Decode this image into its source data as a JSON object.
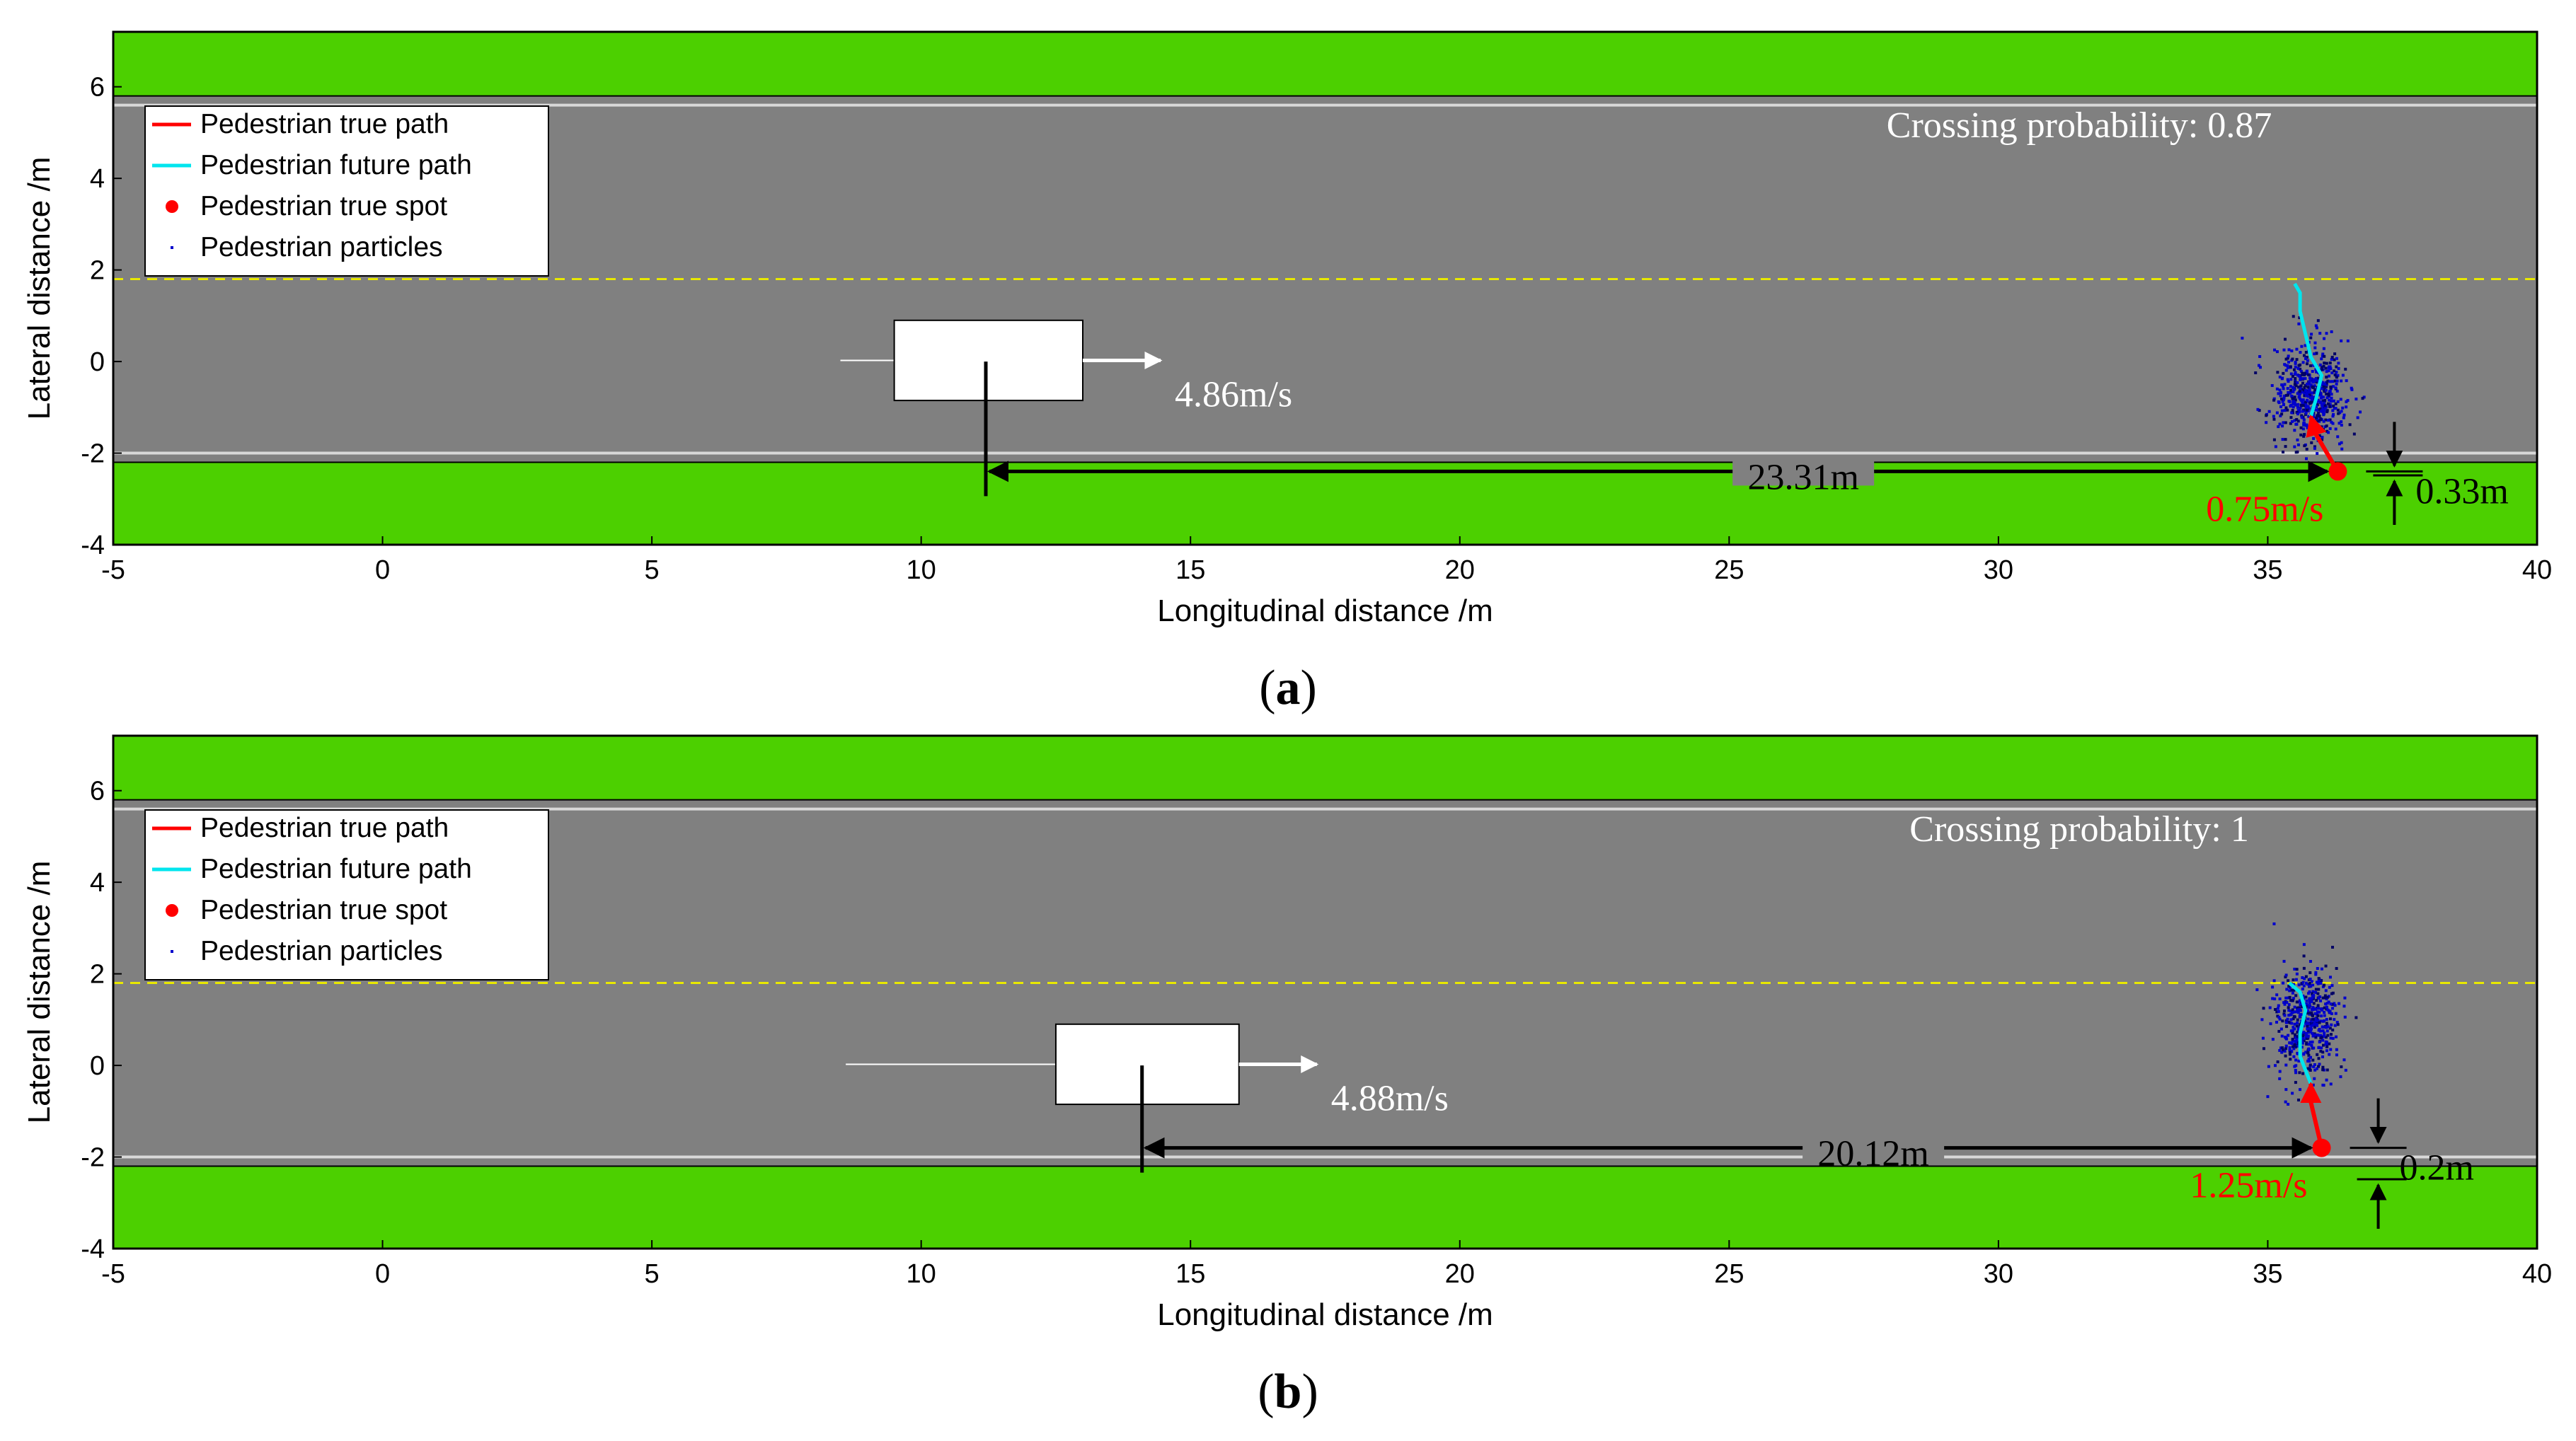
{
  "figure": {
    "panel_labels": [
      "a",
      "b"
    ]
  },
  "colors": {
    "road": "#808080",
    "grass": "#4cd000",
    "lane_line": "#e8e800",
    "edge_line": "#d8d8d8",
    "true_path": "#ff0000",
    "future_path": "#00e5ee",
    "particles": "#0000cc",
    "vehicle": "#ffffff",
    "dimension": "#000000"
  },
  "chart_data": [
    {
      "type": "scatter",
      "panel": "a",
      "xlabel": "Longitudinal distance /m",
      "ylabel": "Lateral distance /m",
      "xlim": [
        -5,
        40
      ],
      "ylim": [
        -4,
        7.2
      ],
      "xticks": [
        -5,
        0,
        5,
        10,
        15,
        20,
        25,
        30,
        35,
        40
      ],
      "yticks": [
        -4,
        -2,
        0,
        2,
        4,
        6
      ],
      "legend": {
        "placement": "top-left",
        "entries": [
          "Pedestrian true path",
          "Pedestrian future path",
          "Pedestrian true spot",
          "Pedestrian particles"
        ]
      },
      "grass_bands": [
        [
          -4,
          -2.2
        ],
        [
          5.8,
          7.2
        ]
      ],
      "edge_lines_y": [
        -2.0,
        5.6
      ],
      "center_line_y": 1.8,
      "crossing_probability_text": "Crossing probability: 0.87",
      "vehicle": {
        "x_min": 9.5,
        "x_max": 13.0,
        "y_min": -0.85,
        "y_max": 0.9,
        "front_x": 11.2,
        "trail_start_x": 8.5,
        "speed_text": "4.86m/s"
      },
      "pedestrian": {
        "true_spot": [
          36.3,
          -2.4
        ],
        "true_path": [
          [
            36.3,
            -2.4
          ],
          [
            36.1,
            -2.0
          ],
          [
            35.9,
            -1.6
          ],
          [
            35.8,
            -1.2
          ]
        ],
        "future_path": [
          [
            35.8,
            -1.2
          ],
          [
            35.9,
            -0.8
          ],
          [
            36.0,
            -0.3
          ],
          [
            35.8,
            0.1
          ],
          [
            35.7,
            0.6
          ],
          [
            35.6,
            1.1
          ],
          [
            35.6,
            1.5
          ],
          [
            35.5,
            1.7
          ]
        ],
        "speed_text": "0.75m/s",
        "particle_cloud": {
          "center": [
            35.8,
            -0.7
          ],
          "spread": [
            0.6,
            1.0
          ],
          "count": 600,
          "y_min": -2.4,
          "y_max": 1.0
        }
      },
      "distance_text": "23.31m",
      "offset_text": "0.33m"
    },
    {
      "type": "scatter",
      "panel": "b",
      "xlabel": "Longitudinal distance /m",
      "ylabel": "Lateral distance /m",
      "xlim": [
        -5,
        40
      ],
      "ylim": [
        -4,
        7.2
      ],
      "xticks": [
        -5,
        0,
        5,
        10,
        15,
        20,
        25,
        30,
        35,
        40
      ],
      "yticks": [
        -4,
        -2,
        0,
        2,
        4,
        6
      ],
      "legend": {
        "placement": "top-left",
        "entries": [
          "Pedestrian true path",
          "Pedestrian future path",
          "Pedestrian true spot",
          "Pedestrian particles"
        ]
      },
      "grass_bands": [
        [
          -4,
          -2.2
        ],
        [
          5.8,
          7.2
        ]
      ],
      "edge_lines_y": [
        -2.0,
        5.6
      ],
      "center_line_y": 1.8,
      "crossing_probability_text": "Crossing probability: 1",
      "vehicle": {
        "x_min": 12.5,
        "x_max": 15.9,
        "y_min": -0.85,
        "y_max": 0.9,
        "front_x": 14.1,
        "trail_start_x": 8.6,
        "speed_text": "4.88m/s"
      },
      "pedestrian": {
        "true_spot": [
          36.0,
          -1.8
        ],
        "true_path": [
          [
            36.0,
            -1.8
          ],
          [
            35.9,
            -1.3
          ],
          [
            35.8,
            -0.8
          ],
          [
            35.8,
            -0.4
          ]
        ],
        "future_path": [
          [
            35.8,
            -0.4
          ],
          [
            35.6,
            0.2
          ],
          [
            35.6,
            0.7
          ],
          [
            35.7,
            1.2
          ],
          [
            35.6,
            1.6
          ],
          [
            35.4,
            1.8
          ]
        ],
        "speed_text": "1.25m/s",
        "particle_cloud": {
          "center": [
            35.7,
            0.9
          ],
          "spread": [
            0.55,
            1.1
          ],
          "count": 550,
          "y_min": -1.6,
          "y_max": 3.2
        }
      },
      "distance_text": "20.12m",
      "offset_text": "0.2m"
    }
  ]
}
